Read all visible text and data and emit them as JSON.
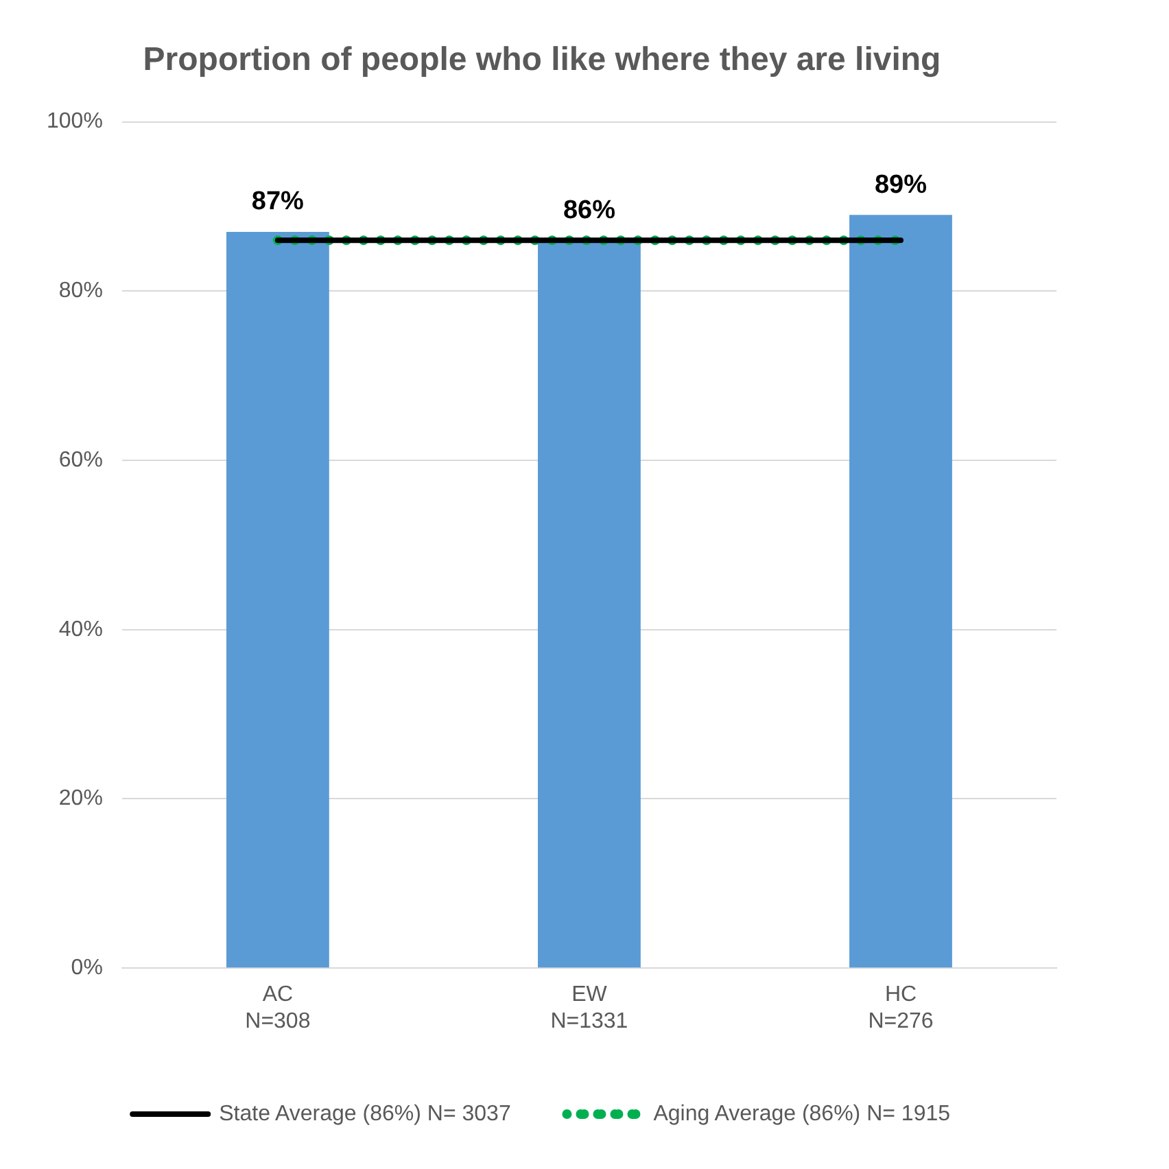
{
  "chart_data": {
    "type": "bar",
    "title": "Proportion of people who like where they are living",
    "categories": [
      "AC\nN=308",
      "EW\nN=1331",
      "HC\nN=276"
    ],
    "series": [
      {
        "color": "#5b9bd5",
        "values": [
          87,
          86,
          89
        ],
        "value_labels": [
          "87%",
          "86%",
          "89%"
        ]
      },
      {
        "type": "line",
        "name": "State Average (86%) N= 3037",
        "color": "#000000",
        "values": [
          86,
          86,
          86
        ],
        "line_style": "solid",
        "marker": "none"
      },
      {
        "type": "line",
        "name": "Aging Average (86%) N= 1915",
        "color": "#00b050",
        "values": [
          86,
          86,
          86
        ],
        "line_style": "dotted",
        "marker": "none"
      }
    ],
    "ylim": [
      0,
      100
    ],
    "yticks": [
      {
        "value": 0,
        "label": "0%"
      },
      {
        "value": 20,
        "label": "20%"
      },
      {
        "value": 40,
        "label": "40%"
      },
      {
        "value": 60,
        "label": "60%"
      },
      {
        "value": 80,
        "label": "80%"
      },
      {
        "value": 100,
        "label": "100%"
      }
    ],
    "grid": "y",
    "legend": "bottom"
  }
}
